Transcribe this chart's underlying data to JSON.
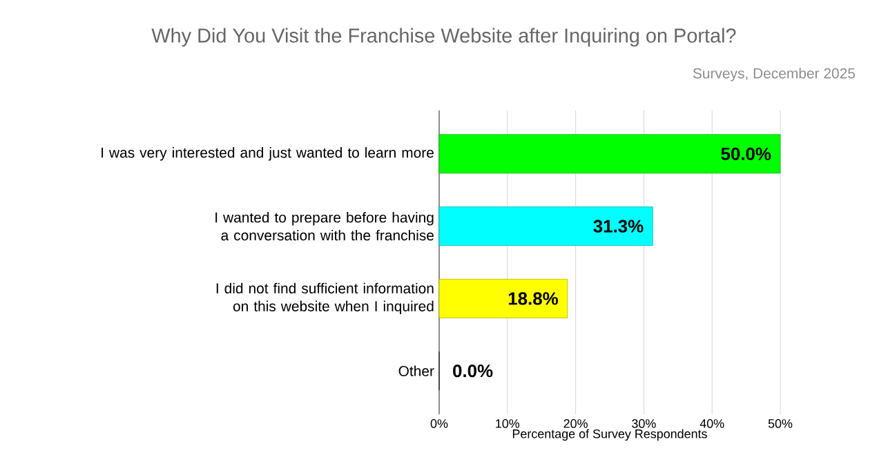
{
  "chart_data": {
    "type": "bar",
    "orientation": "horizontal",
    "title": "Why Did You Visit the Franchise Website after Inquiring on Portal?",
    "annotations": [
      "Surveys, December 2025"
    ],
    "xlabel": "Percentage of Survey Respondents",
    "categories": [
      "I was very interested and just wanted to learn more",
      "I wanted to prepare before having a conversation with the franchise",
      "I did not find sufficient information on this website when I inquired",
      "Other"
    ],
    "values": [
      50.0,
      31.3,
      18.8,
      0.0
    ],
    "value_labels": [
      "50.0%",
      "31.3%",
      "18.8%",
      "0.0%"
    ],
    "colors": [
      "#00ff00",
      "#00ffff",
      "#ffff00",
      "#333333"
    ],
    "xlim": [
      0,
      50
    ],
    "xticks": [
      {
        "value": 0,
        "label": "0%"
      },
      {
        "value": 10,
        "label": "10%"
      },
      {
        "value": 20,
        "label": "20%"
      },
      {
        "value": 30,
        "label": "30%"
      },
      {
        "value": 40,
        "label": "40%"
      },
      {
        "value": 50,
        "label": "50%"
      }
    ],
    "grid": "x"
  }
}
